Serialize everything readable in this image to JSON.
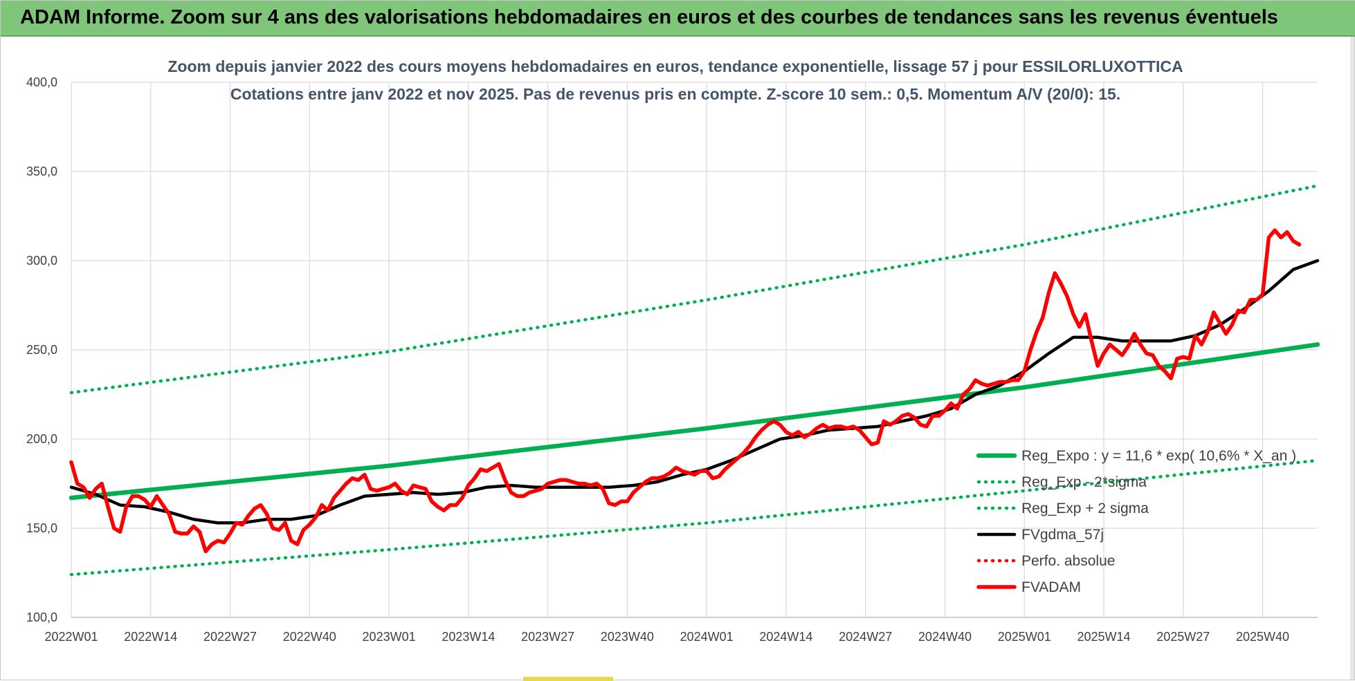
{
  "banner": {
    "title": "ADAM Informe. Zoom sur 4 ans des valorisations hebdomadaires en euros et des courbes de tendances sans les revenus éventuels"
  },
  "colors": {
    "banner_bg": "#7fc57a",
    "reg_expo": "#00b050",
    "fvgdma": "#000000",
    "fvadam": "#ff0000",
    "grid": "#d9d9d9",
    "title_text": "#44546a"
  },
  "chart_data": {
    "type": "line",
    "title": "Zoom depuis janvier 2022 des cours moyens hebdomadaires en euros, tendance exponentielle, lissage 57 j pour ESSILORLUXOTTICA",
    "subtitle": "Cotations entre janv 2022 et nov 2025. Pas de revenus pris en compte. Z-score 10 sem.: 0,5. Momentum A/V (20/0): 15.",
    "xlabel": "",
    "ylabel": "",
    "ylim": [
      100,
      400
    ],
    "yticks": [
      "100,0",
      "150,0",
      "200,0",
      "250,0",
      "300,0",
      "350,0",
      "400,0"
    ],
    "x_range_weeks": [
      0,
      204
    ],
    "xticks": [
      {
        "w": 0,
        "label": "2022W01"
      },
      {
        "w": 13,
        "label": "2022W14"
      },
      {
        "w": 26,
        "label": "2022W27"
      },
      {
        "w": 39,
        "label": "2022W40"
      },
      {
        "w": 52,
        "label": "2023W01"
      },
      {
        "w": 65,
        "label": "2023W14"
      },
      {
        "w": 78,
        "label": "2023W27"
      },
      {
        "w": 91,
        "label": "2023W40"
      },
      {
        "w": 104,
        "label": "2024W01"
      },
      {
        "w": 117,
        "label": "2024W14"
      },
      {
        "w": 130,
        "label": "2024W27"
      },
      {
        "w": 143,
        "label": "2024W40"
      },
      {
        "w": 156,
        "label": "2025W01"
      },
      {
        "w": 169,
        "label": "2025W14"
      },
      {
        "w": 182,
        "label": "2025W27"
      },
      {
        "w": 195,
        "label": "2025W40"
      }
    ],
    "grid": true,
    "legend_position": "bottom-right",
    "series": [
      {
        "name": "Reg_Expo : y = 11,6 * exp( 10,6% *  X_an )",
        "style": "solid-thick",
        "color": "#00b050",
        "points": [
          [
            0,
            167
          ],
          [
            52,
            185
          ],
          [
            104,
            206
          ],
          [
            156,
            229
          ],
          [
            204,
            253
          ]
        ]
      },
      {
        "name": "Reg_Exp - 2*sigma",
        "style": "dotted",
        "color": "#00b050",
        "points": [
          [
            0,
            124
          ],
          [
            52,
            138
          ],
          [
            104,
            153
          ],
          [
            156,
            171
          ],
          [
            204,
            188
          ]
        ]
      },
      {
        "name": "Reg_Exp + 2 sigma",
        "style": "dotted",
        "color": "#00b050",
        "points": [
          [
            0,
            226
          ],
          [
            52,
            249
          ],
          [
            104,
            278
          ],
          [
            156,
            309
          ],
          [
            204,
            342
          ]
        ]
      },
      {
        "name": "FVgdma_57j",
        "style": "solid",
        "color": "#000000",
        "points": [
          [
            0,
            173
          ],
          [
            4,
            169
          ],
          [
            8,
            163
          ],
          [
            12,
            162
          ],
          [
            16,
            159
          ],
          [
            20,
            155
          ],
          [
            24,
            153
          ],
          [
            28,
            153
          ],
          [
            32,
            155
          ],
          [
            36,
            155
          ],
          [
            40,
            157
          ],
          [
            44,
            163
          ],
          [
            48,
            168
          ],
          [
            52,
            169
          ],
          [
            56,
            170
          ],
          [
            60,
            169
          ],
          [
            64,
            170
          ],
          [
            68,
            173
          ],
          [
            72,
            174
          ],
          [
            76,
            173
          ],
          [
            80,
            173
          ],
          [
            84,
            173
          ],
          [
            88,
            173
          ],
          [
            92,
            174
          ],
          [
            96,
            176
          ],
          [
            100,
            180
          ],
          [
            104,
            183
          ],
          [
            108,
            188
          ],
          [
            112,
            194
          ],
          [
            116,
            200
          ],
          [
            120,
            202
          ],
          [
            124,
            205
          ],
          [
            128,
            206
          ],
          [
            132,
            207
          ],
          [
            136,
            210
          ],
          [
            140,
            213
          ],
          [
            144,
            217
          ],
          [
            148,
            225
          ],
          [
            152,
            230
          ],
          [
            156,
            238
          ],
          [
            160,
            248
          ],
          [
            164,
            257
          ],
          [
            168,
            257
          ],
          [
            172,
            255
          ],
          [
            176,
            255
          ],
          [
            180,
            255
          ],
          [
            184,
            258
          ],
          [
            188,
            264
          ],
          [
            192,
            273
          ],
          [
            196,
            283
          ],
          [
            200,
            295
          ],
          [
            204,
            300
          ]
        ]
      },
      {
        "name": "Perfo. absolue",
        "style": "dotted",
        "color": "#ff0000",
        "points": []
      },
      {
        "name": "FVADAM",
        "style": "solid-thick",
        "color": "#ff0000",
        "points": [
          [
            0,
            187
          ],
          [
            1,
            175
          ],
          [
            2,
            173
          ],
          [
            3,
            167
          ],
          [
            4,
            172
          ],
          [
            5,
            175
          ],
          [
            6,
            162
          ],
          [
            7,
            150
          ],
          [
            8,
            148
          ],
          [
            9,
            162
          ],
          [
            10,
            168
          ],
          [
            11,
            168
          ],
          [
            12,
            166
          ],
          [
            13,
            162
          ],
          [
            14,
            168
          ],
          [
            15,
            163
          ],
          [
            16,
            158
          ],
          [
            17,
            148
          ],
          [
            18,
            147
          ],
          [
            19,
            147
          ],
          [
            20,
            151
          ],
          [
            21,
            148
          ],
          [
            22,
            137
          ],
          [
            23,
            141
          ],
          [
            24,
            143
          ],
          [
            25,
            142
          ],
          [
            26,
            147
          ],
          [
            27,
            153
          ],
          [
            28,
            152
          ],
          [
            29,
            157
          ],
          [
            30,
            161
          ],
          [
            31,
            163
          ],
          [
            32,
            158
          ],
          [
            33,
            150
          ],
          [
            34,
            149
          ],
          [
            35,
            153
          ],
          [
            36,
            143
          ],
          [
            37,
            141
          ],
          [
            38,
            149
          ],
          [
            39,
            152
          ],
          [
            40,
            156
          ],
          [
            41,
            163
          ],
          [
            42,
            160
          ],
          [
            43,
            167
          ],
          [
            44,
            171
          ],
          [
            45,
            175
          ],
          [
            46,
            178
          ],
          [
            47,
            177
          ],
          [
            48,
            180
          ],
          [
            49,
            172
          ],
          [
            50,
            171
          ],
          [
            51,
            172
          ],
          [
            52,
            173
          ],
          [
            53,
            175
          ],
          [
            54,
            171
          ],
          [
            55,
            169
          ],
          [
            56,
            174
          ],
          [
            57,
            173
          ],
          [
            58,
            172
          ],
          [
            59,
            165
          ],
          [
            60,
            162
          ],
          [
            61,
            160
          ],
          [
            62,
            163
          ],
          [
            63,
            163
          ],
          [
            64,
            167
          ],
          [
            65,
            174
          ],
          [
            66,
            178
          ],
          [
            67,
            183
          ],
          [
            68,
            182
          ],
          [
            69,
            184
          ],
          [
            70,
            186
          ],
          [
            71,
            177
          ],
          [
            72,
            170
          ],
          [
            73,
            168
          ],
          [
            74,
            168
          ],
          [
            75,
            170
          ],
          [
            76,
            171
          ],
          [
            77,
            172
          ],
          [
            78,
            175
          ],
          [
            79,
            176
          ],
          [
            80,
            177
          ],
          [
            81,
            177
          ],
          [
            82,
            176
          ],
          [
            83,
            175
          ],
          [
            84,
            175
          ],
          [
            85,
            174
          ],
          [
            86,
            175
          ],
          [
            87,
            172
          ],
          [
            88,
            164
          ],
          [
            89,
            163
          ],
          [
            90,
            165
          ],
          [
            91,
            165
          ],
          [
            92,
            170
          ],
          [
            93,
            173
          ],
          [
            94,
            176
          ],
          [
            95,
            178
          ],
          [
            96,
            178
          ],
          [
            97,
            179
          ],
          [
            98,
            181
          ],
          [
            99,
            184
          ],
          [
            100,
            182
          ],
          [
            101,
            181
          ],
          [
            102,
            180
          ],
          [
            103,
            182
          ],
          [
            104,
            182
          ],
          [
            105,
            178
          ],
          [
            106,
            179
          ],
          [
            107,
            183
          ],
          [
            108,
            186
          ],
          [
            109,
            189
          ],
          [
            110,
            192
          ],
          [
            111,
            196
          ],
          [
            112,
            201
          ],
          [
            113,
            205
          ],
          [
            114,
            208
          ],
          [
            115,
            210
          ],
          [
            116,
            208
          ],
          [
            117,
            204
          ],
          [
            118,
            202
          ],
          [
            119,
            204
          ],
          [
            120,
            201
          ],
          [
            121,
            203
          ],
          [
            122,
            206
          ],
          [
            123,
            208
          ],
          [
            124,
            206
          ],
          [
            125,
            207
          ],
          [
            126,
            207
          ],
          [
            127,
            206
          ],
          [
            128,
            207
          ],
          [
            129,
            205
          ],
          [
            130,
            201
          ],
          [
            131,
            197
          ],
          [
            132,
            198
          ],
          [
            133,
            210
          ],
          [
            134,
            208
          ],
          [
            135,
            210
          ],
          [
            136,
            213
          ],
          [
            137,
            214
          ],
          [
            138,
            212
          ],
          [
            139,
            208
          ],
          [
            140,
            207
          ],
          [
            141,
            213
          ],
          [
            142,
            213
          ],
          [
            143,
            216
          ],
          [
            144,
            220
          ],
          [
            145,
            217
          ],
          [
            146,
            225
          ],
          [
            147,
            228
          ],
          [
            148,
            233
          ],
          [
            149,
            231
          ],
          [
            150,
            230
          ],
          [
            151,
            231
          ],
          [
            152,
            232
          ],
          [
            153,
            232
          ],
          [
            154,
            233
          ],
          [
            155,
            233
          ],
          [
            156,
            238
          ],
          [
            157,
            250
          ],
          [
            158,
            260
          ],
          [
            159,
            268
          ],
          [
            160,
            282
          ],
          [
            161,
            293
          ],
          [
            162,
            287
          ],
          [
            163,
            280
          ],
          [
            164,
            270
          ],
          [
            165,
            263
          ],
          [
            166,
            270
          ],
          [
            167,
            255
          ],
          [
            168,
            241
          ],
          [
            169,
            248
          ],
          [
            170,
            253
          ],
          [
            171,
            250
          ],
          [
            172,
            247
          ],
          [
            173,
            252
          ],
          [
            174,
            259
          ],
          [
            175,
            253
          ],
          [
            176,
            248
          ],
          [
            177,
            247
          ],
          [
            178,
            241
          ],
          [
            179,
            238
          ],
          [
            180,
            234
          ],
          [
            181,
            245
          ],
          [
            182,
            246
          ],
          [
            183,
            245
          ],
          [
            184,
            258
          ],
          [
            185,
            253
          ],
          [
            186,
            260
          ],
          [
            187,
            271
          ],
          [
            188,
            265
          ],
          [
            189,
            259
          ],
          [
            190,
            264
          ],
          [
            191,
            272
          ],
          [
            192,
            271
          ],
          [
            193,
            278
          ],
          [
            194,
            278
          ],
          [
            195,
            281
          ],
          [
            196,
            313
          ],
          [
            197,
            317
          ],
          [
            198,
            313
          ],
          [
            199,
            316
          ],
          [
            200,
            311
          ],
          [
            201,
            309
          ]
        ]
      }
    ]
  }
}
